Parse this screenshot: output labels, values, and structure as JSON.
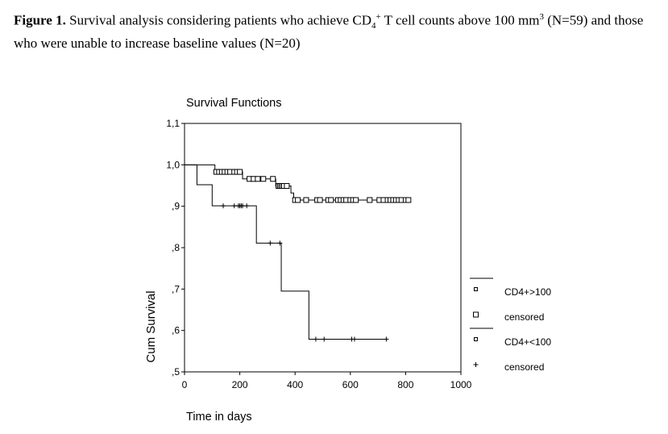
{
  "caption": {
    "label": "Figure 1.",
    "text_1": " Survival analysis considering patients who achieve CD",
    "sub": "4",
    "sup": "+",
    "text_2": " T cell counts above 100 mm",
    "unit_sup": "3",
    "text_3": " (N=59) and those who were unable to increase baseline values (N=20)"
  },
  "chart_data": {
    "type": "line",
    "title": "Survival Functions",
    "xlabel": "Time in days",
    "ylabel": "Cum Survival",
    "xlim": [
      0,
      1000
    ],
    "ylim": [
      0.5,
      1.1
    ],
    "x_ticks": [
      "0",
      "200",
      "400",
      "600",
      "800",
      "1000"
    ],
    "y_ticks": [
      {
        "value": 0.5,
        "label": ",5"
      },
      {
        "value": 0.6,
        "label": ",6"
      },
      {
        "value": 0.7,
        "label": ",7"
      },
      {
        "value": 0.8,
        "label": ",8"
      },
      {
        "value": 0.9,
        "label": ",9"
      },
      {
        "value": 1.0,
        "label": "1,0"
      },
      {
        "value": 1.1,
        "label": "1,1"
      }
    ],
    "grid": false,
    "legend_position": "right",
    "legend": [
      {
        "label": "CD4+>100",
        "symbol": "line"
      },
      {
        "label": "censored",
        "symbol": "square"
      },
      {
        "label": "CD4+<100",
        "symbol": "line"
      },
      {
        "label": "censored",
        "symbol": "plus"
      }
    ],
    "series": [
      {
        "name": "CD4+>100",
        "censor_marker": "square",
        "steps": [
          [
            0,
            1.0
          ],
          [
            110,
            0.983
          ],
          [
            210,
            0.966
          ],
          [
            330,
            0.949
          ],
          [
            385,
            0.932
          ],
          [
            395,
            0.915
          ],
          [
            815,
            0.915
          ]
        ],
        "censored": [
          [
            115,
            0.983
          ],
          [
            125,
            0.983
          ],
          [
            135,
            0.983
          ],
          [
            145,
            0.983
          ],
          [
            155,
            0.983
          ],
          [
            165,
            0.983
          ],
          [
            180,
            0.983
          ],
          [
            190,
            0.983
          ],
          [
            200,
            0.983
          ],
          [
            235,
            0.966
          ],
          [
            250,
            0.966
          ],
          [
            265,
            0.966
          ],
          [
            285,
            0.966
          ],
          [
            320,
            0.966
          ],
          [
            340,
            0.949
          ],
          [
            345,
            0.949
          ],
          [
            350,
            0.949
          ],
          [
            355,
            0.949
          ],
          [
            360,
            0.949
          ],
          [
            370,
            0.949
          ],
          [
            400,
            0.915
          ],
          [
            410,
            0.915
          ],
          [
            440,
            0.915
          ],
          [
            480,
            0.915
          ],
          [
            490,
            0.915
          ],
          [
            520,
            0.915
          ],
          [
            530,
            0.915
          ],
          [
            555,
            0.915
          ],
          [
            565,
            0.915
          ],
          [
            575,
            0.915
          ],
          [
            585,
            0.915
          ],
          [
            600,
            0.915
          ],
          [
            610,
            0.915
          ],
          [
            620,
            0.915
          ],
          [
            670,
            0.915
          ],
          [
            705,
            0.915
          ],
          [
            720,
            0.915
          ],
          [
            735,
            0.915
          ],
          [
            745,
            0.915
          ],
          [
            755,
            0.915
          ],
          [
            765,
            0.915
          ],
          [
            775,
            0.915
          ],
          [
            785,
            0.915
          ],
          [
            800,
            0.915
          ],
          [
            810,
            0.915
          ]
        ]
      },
      {
        "name": "CD4+<100",
        "censor_marker": "plus",
        "steps": [
          [
            0,
            1.0
          ],
          [
            45,
            0.952
          ],
          [
            100,
            0.901
          ],
          [
            260,
            0.811
          ],
          [
            350,
            0.695
          ],
          [
            450,
            0.579
          ],
          [
            735,
            0.579
          ]
        ],
        "censored": [
          [
            140,
            0.901
          ],
          [
            180,
            0.901
          ],
          [
            195,
            0.901
          ],
          [
            200,
            0.901
          ],
          [
            205,
            0.901
          ],
          [
            210,
            0.901
          ],
          [
            225,
            0.901
          ],
          [
            310,
            0.811
          ],
          [
            345,
            0.811
          ],
          [
            475,
            0.579
          ],
          [
            505,
            0.579
          ],
          [
            605,
            0.579
          ],
          [
            615,
            0.579
          ],
          [
            730,
            0.579
          ]
        ]
      }
    ]
  }
}
